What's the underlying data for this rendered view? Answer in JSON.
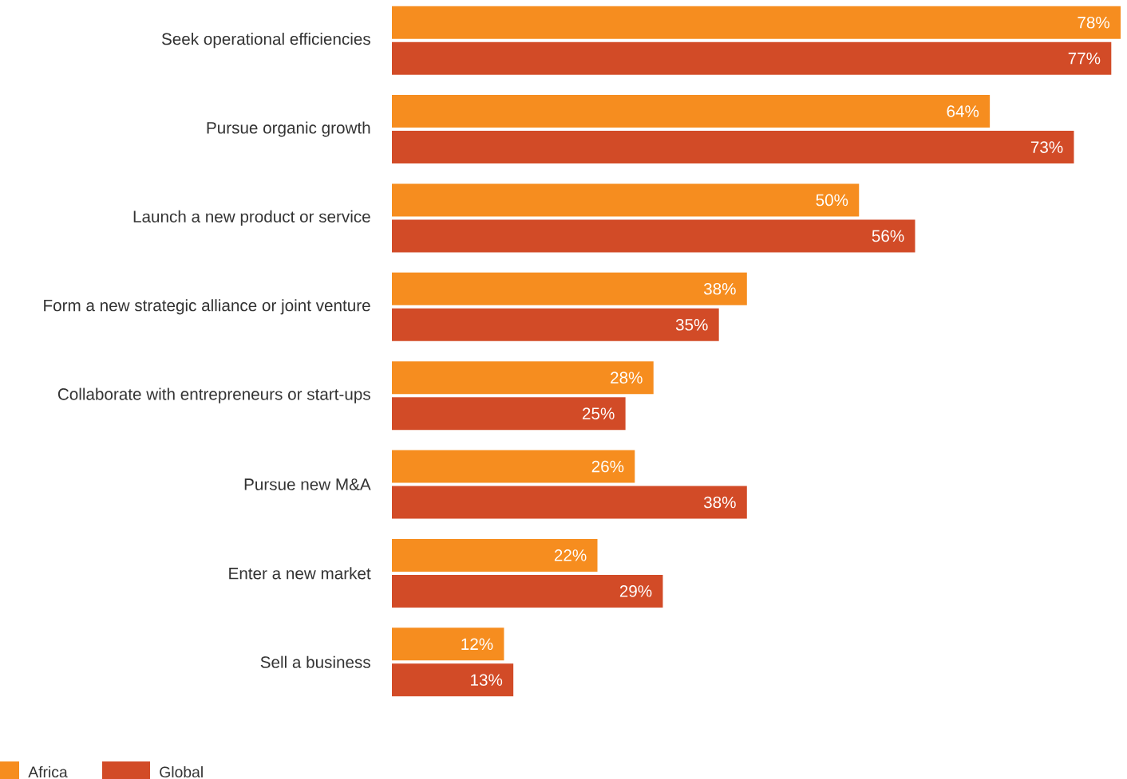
{
  "chart_data": {
    "type": "bar",
    "orientation": "horizontal",
    "categories": [
      "Seek operational efficiencies",
      "Pursue organic growth",
      "Launch a new product or service",
      "Form a new strategic alliance or joint venture",
      "Collaborate with entrepreneurs or start-ups",
      "Pursue new M&A",
      "Enter a new market",
      "Sell a business"
    ],
    "series": [
      {
        "name": "Africa",
        "color": "#f68d1f",
        "values": [
          78,
          64,
          50,
          38,
          28,
          26,
          22,
          12
        ],
        "value_labels": [
          "78%",
          "64%",
          "50%",
          "38%",
          "28%",
          "26%",
          "22%",
          "12%"
        ]
      },
      {
        "name": "Global",
        "color": "#d24b27",
        "values": [
          77,
          73,
          56,
          35,
          25,
          38,
          29,
          13
        ],
        "value_labels": [
          "77%",
          "73%",
          "56%",
          "35%",
          "25%",
          "38%",
          "29%",
          "13%"
        ]
      }
    ],
    "legend": "bottom left"
  }
}
